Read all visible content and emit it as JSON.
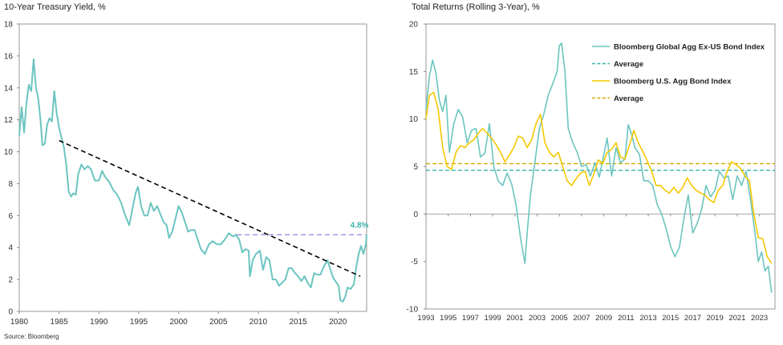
{
  "chart_data": [
    {
      "type": "line",
      "title": "10-Year Treasury Yield, %",
      "xlabel": "",
      "ylabel": "",
      "xlim": [
        1980,
        2023.6
      ],
      "ylim": [
        0,
        18
      ],
      "x_ticks": [
        "1980",
        "1985",
        "1990",
        "1995",
        "2000",
        "2005",
        "2010",
        "2015",
        "2020"
      ],
      "y_ticks": [
        "0",
        "2",
        "4",
        "6",
        "8",
        "10",
        "12",
        "14",
        "16",
        "18"
      ],
      "grid": false,
      "colors": {
        "yield": "#6cc5c0",
        "trend": "#000000",
        "ref": "#9b8fe8",
        "annotation": "#3bb3ab"
      },
      "series": [
        {
          "style": "solid",
          "x": [
            1980,
            1980.3,
            1980.6,
            1980.9,
            1981.2,
            1981.5,
            1981.8,
            1982.1,
            1982.4,
            1982.7,
            1982.9,
            1983.2,
            1983.5,
            1983.8,
            1984.1,
            1984.4,
            1984.7,
            1985.0,
            1985.3,
            1985.6,
            1985.9,
            1986.2,
            1986.5,
            1986.8,
            1987.1,
            1987.4,
            1987.8,
            1988.2,
            1988.6,
            1989.0,
            1989.5,
            1990.0,
            1990.4,
            1990.8,
            1991.3,
            1991.8,
            1992.3,
            1992.8,
            1993.3,
            1993.8,
            1994.2,
            1994.6,
            1994.9,
            1995.3,
            1995.7,
            1996.1,
            1996.5,
            1996.9,
            1997.3,
            1997.7,
            1998.1,
            1998.5,
            1998.8,
            1999.2,
            1999.6,
            2000.0,
            2000.4,
            2000.8,
            2001.2,
            2001.6,
            2002.0,
            2002.4,
            2002.8,
            2003.3,
            2003.8,
            2004.3,
            2004.8,
            2005.3,
            2005.8,
            2006.3,
            2006.8,
            2007.2,
            2007.6,
            2008.0,
            2008.4,
            2008.8,
            2008.95,
            2009.3,
            2009.7,
            2010.2,
            2010.6,
            2011.0,
            2011.4,
            2011.8,
            2012.2,
            2012.6,
            2013.0,
            2013.4,
            2013.8,
            2014.2,
            2014.6,
            2015.0,
            2015.4,
            2015.8,
            2016.2,
            2016.6,
            2017.0,
            2017.4,
            2017.8,
            2018.2,
            2018.7,
            2019.0,
            2019.4,
            2019.8,
            2020.1,
            2020.3,
            2020.6,
            2020.9,
            2021.2,
            2021.6,
            2022.0,
            2022.3,
            2022.6,
            2022.9,
            2023.2,
            2023.5,
            2023.6
          ],
          "values": [
            11.0,
            12.8,
            11.2,
            13.0,
            14.2,
            13.8,
            15.8,
            14.0,
            13.3,
            11.8,
            10.4,
            10.5,
            11.7,
            12.1,
            11.9,
            13.8,
            12.4,
            11.5,
            10.9,
            10.3,
            9.2,
            7.5,
            7.2,
            7.4,
            7.3,
            8.6,
            9.2,
            8.9,
            9.1,
            8.9,
            8.2,
            8.2,
            8.8,
            8.4,
            8.1,
            7.6,
            7.3,
            6.8,
            6.0,
            5.4,
            6.4,
            7.4,
            7.8,
            6.6,
            6.0,
            6.0,
            6.8,
            6.3,
            6.6,
            6.1,
            5.6,
            5.4,
            4.6,
            5.0,
            5.8,
            6.6,
            6.2,
            5.6,
            5.0,
            5.1,
            5.1,
            4.5,
            3.9,
            3.6,
            4.2,
            4.4,
            4.2,
            4.2,
            4.5,
            4.9,
            4.7,
            4.8,
            4.5,
            3.7,
            3.9,
            3.8,
            2.2,
            3.2,
            3.6,
            3.8,
            2.6,
            3.4,
            3.2,
            2.0,
            2.0,
            1.6,
            1.8,
            2.0,
            2.7,
            2.7,
            2.4,
            2.2,
            1.9,
            2.2,
            1.8,
            1.5,
            2.4,
            2.3,
            2.3,
            2.8,
            3.2,
            2.7,
            2.1,
            1.8,
            1.6,
            0.7,
            0.6,
            0.9,
            1.5,
            1.4,
            1.7,
            2.8,
            3.6,
            4.1,
            3.6,
            4.2,
            4.8
          ]
        },
        {
          "style": "dashed",
          "x": [
            1985.0,
            2022.8
          ],
          "values": [
            10.7,
            2.2
          ]
        },
        {
          "style": "dashed",
          "x": [
            2007.3,
            2023.5
          ],
          "values": [
            4.8,
            4.8
          ]
        }
      ],
      "annotations": [
        {
          "text": "4.8%"
        }
      ]
    },
    {
      "type": "line",
      "title": "Total Returns (Rolling 3-Year), %",
      "xlabel": "",
      "ylabel": "",
      "xlim": [
        1993,
        2024.4
      ],
      "ylim": [
        -10,
        20
      ],
      "x_ticks": [
        "1993",
        "1995",
        "1997",
        "1999",
        "2001",
        "2003",
        "2005",
        "2007",
        "2009",
        "2011",
        "2013",
        "2015",
        "2017",
        "2019",
        "2021",
        "2023"
      ],
      "y_ticks": [
        "20",
        "15",
        "10",
        "5",
        "0",
        "-5",
        "-10"
      ],
      "grid": false,
      "legend_position": "top-right",
      "colors": {
        "global": "#6cc5c0",
        "us": "#f5c800"
      },
      "series": [
        {
          "name": "Bloomberg Global Agg Ex-US Bond Index",
          "style": "solid",
          "color": "#6cc5c0",
          "x": [
            1993,
            1993.3,
            1993.6,
            1993.9,
            1994.2,
            1994.5,
            1994.8,
            1995.1,
            1995.5,
            1995.9,
            1996.3,
            1996.7,
            1997.1,
            1997.5,
            1997.9,
            1998.3,
            1998.7,
            1999.1,
            1999.5,
            1999.9,
            2000.3,
            2000.7,
            2001.1,
            2001.5,
            2001.9,
            2002.1,
            2002.4,
            2002.8,
            2003.2,
            2003.6,
            2004.0,
            2004.4,
            2004.8,
            2005.0,
            2005.2,
            2005.5,
            2005.8,
            2006.2,
            2006.6,
            2007.0,
            2007.4,
            2007.8,
            2008.2,
            2008.6,
            2008.9,
            2009.3,
            2009.7,
            2010.1,
            2010.5,
            2010.9,
            2011.2,
            2011.5,
            2011.8,
            2012.2,
            2012.6,
            2013.0,
            2013.4,
            2013.8,
            2014.2,
            2014.6,
            2015.0,
            2015.4,
            2015.8,
            2016.2,
            2016.6,
            2017.0,
            2017.4,
            2017.8,
            2018.2,
            2018.6,
            2019.0,
            2019.4,
            2019.8,
            2020.2,
            2020.6,
            2021.0,
            2021.4,
            2021.8,
            2022.2,
            2022.6,
            2022.9,
            2023.2,
            2023.5,
            2023.8,
            2024.1
          ],
          "values": [
            11.0,
            14.5,
            16.2,
            14.8,
            12.0,
            10.8,
            12.5,
            6.5,
            9.5,
            11.0,
            10.2,
            7.5,
            8.8,
            9.0,
            6.0,
            6.4,
            9.5,
            5.0,
            3.5,
            3.0,
            4.3,
            3.2,
            1.0,
            -2.5,
            -5.2,
            -2.0,
            2.0,
            5.5,
            9.0,
            10.5,
            12.5,
            13.7,
            15.0,
            17.7,
            18.0,
            15.0,
            9.0,
            7.5,
            6.5,
            5.0,
            5.2,
            4.0,
            5.4,
            3.9,
            5.7,
            8.0,
            4.0,
            7.0,
            5.4,
            5.8,
            9.4,
            8.4,
            7.0,
            6.3,
            3.5,
            3.5,
            3.0,
            1.0,
            0.0,
            -1.5,
            -3.4,
            -4.5,
            -3.5,
            -0.5,
            2.0,
            -2.0,
            -1.0,
            0.5,
            3.0,
            1.8,
            2.5,
            4.5,
            3.8,
            4.0,
            1.5,
            4.0,
            3.0,
            4.5,
            1.5,
            -2.0,
            -5.0,
            -4.0,
            -6.0,
            -5.5,
            -8.3
          ]
        },
        {
          "name": "Average",
          "style": "dashed",
          "color": "#3bb3ab",
          "x": [
            1993,
            2024.4
          ],
          "values": [
            4.6,
            4.6
          ]
        },
        {
          "name": "Bloomberg U.S. Agg Bond Index",
          "style": "solid",
          "color": "#f5c800",
          "x": [
            1993,
            1993.3,
            1993.7,
            1994.1,
            1994.5,
            1994.9,
            1995.3,
            1995.7,
            1996.1,
            1996.5,
            1996.9,
            1997.3,
            1997.7,
            1998.1,
            1998.5,
            1998.9,
            1999.3,
            1999.7,
            2000.1,
            2000.5,
            2000.9,
            2001.3,
            2001.7,
            2002.1,
            2002.5,
            2002.9,
            2003.3,
            2003.7,
            2004.1,
            2004.5,
            2004.9,
            2005.3,
            2005.7,
            2006.1,
            2006.5,
            2006.9,
            2007.3,
            2007.7,
            2008.1,
            2008.5,
            2008.9,
            2009.3,
            2009.7,
            2010.1,
            2010.5,
            2010.9,
            2011.3,
            2011.7,
            2012.1,
            2012.5,
            2012.9,
            2013.3,
            2013.7,
            2014.1,
            2014.5,
            2014.9,
            2015.3,
            2015.7,
            2016.1,
            2016.5,
            2016.9,
            2017.3,
            2017.7,
            2018.1,
            2018.5,
            2018.9,
            2019.3,
            2019.7,
            2020.1,
            2020.5,
            2020.9,
            2021.3,
            2021.7,
            2022.1,
            2022.5,
            2022.9,
            2023.3,
            2023.7,
            2024.1
          ],
          "values": [
            10.0,
            12.5,
            12.8,
            11.0,
            7.0,
            5.0,
            4.7,
            6.5,
            7.2,
            7.0,
            7.5,
            7.8,
            8.5,
            9.0,
            8.5,
            8.0,
            7.3,
            6.5,
            5.5,
            6.2,
            7.0,
            8.2,
            8.0,
            7.0,
            7.8,
            9.5,
            10.5,
            7.5,
            6.5,
            6.0,
            6.5,
            5.0,
            3.5,
            3.0,
            3.7,
            4.3,
            4.5,
            3.0,
            4.2,
            5.7,
            5.3,
            6.5,
            6.8,
            7.5,
            6.0,
            5.8,
            7.2,
            8.8,
            7.5,
            6.6,
            5.6,
            4.5,
            3.0,
            3.0,
            2.5,
            2.2,
            2.8,
            2.2,
            2.8,
            3.8,
            3.0,
            2.5,
            2.2,
            2.0,
            1.5,
            1.2,
            2.5,
            3.0,
            4.5,
            5.5,
            5.2,
            4.8,
            4.0,
            3.5,
            0.0,
            -2.5,
            -2.6,
            -4.5,
            -5.2
          ]
        },
        {
          "name": "Average",
          "style": "dashed",
          "color": "#d4a800",
          "x": [
            1993,
            2024.4
          ],
          "values": [
            5.3,
            5.3
          ]
        }
      ]
    }
  ],
  "source": "Source: Bloomberg"
}
